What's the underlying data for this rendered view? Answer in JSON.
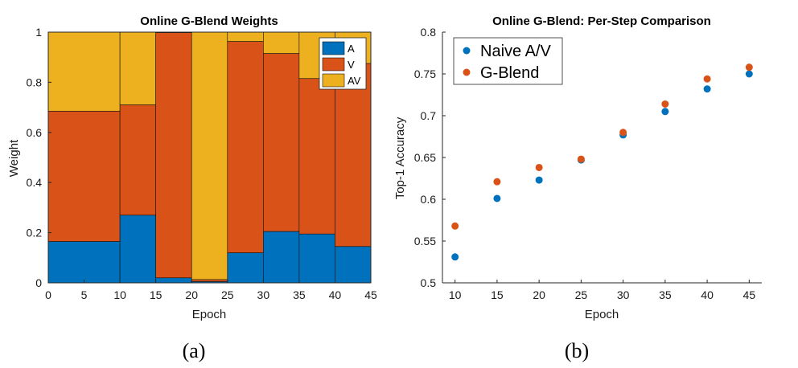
{
  "colors": {
    "A": "#0072BD",
    "V": "#D95319",
    "AV": "#EDB120"
  },
  "chart_data": [
    {
      "type": "area",
      "title": "Online G-Blend Weights",
      "xlabel": "Epoch",
      "ylabel": "Weight",
      "xlim": [
        0,
        45
      ],
      "ylim": [
        0,
        1
      ],
      "xticks": [
        "0",
        "5",
        "10",
        "15",
        "20",
        "25",
        "30",
        "35",
        "40",
        "45"
      ],
      "yticks": [
        "0",
        "0.2",
        "0.4",
        "0.6",
        "0.8",
        "1"
      ],
      "stacked": true,
      "step": true,
      "legend_position": "top-right",
      "segments": [
        {
          "start": 0,
          "end": 10,
          "A": 0.165,
          "V": 0.52,
          "AV": 0.315
        },
        {
          "start": 10,
          "end": 15,
          "A": 0.27,
          "V": 0.44,
          "AV": 0.29
        },
        {
          "start": 15,
          "end": 20,
          "A": 0.02,
          "V": 0.978,
          "AV": 0.002
        },
        {
          "start": 20,
          "end": 25,
          "A": 0.005,
          "V": 0.008,
          "AV": 0.987
        },
        {
          "start": 25,
          "end": 30,
          "A": 0.12,
          "V": 0.843,
          "AV": 0.037
        },
        {
          "start": 30,
          "end": 35,
          "A": 0.205,
          "V": 0.71,
          "AV": 0.085
        },
        {
          "start": 35,
          "end": 40,
          "A": 0.195,
          "V": 0.62,
          "AV": 0.185
        },
        {
          "start": 40,
          "end": 45,
          "A": 0.145,
          "V": 0.73,
          "AV": 0.125
        }
      ],
      "series_names": [
        "A",
        "V",
        "AV"
      ],
      "caption": "(a)"
    },
    {
      "type": "scatter",
      "title": "Online G-Blend: Per-Step Comparison",
      "xlabel": "Epoch",
      "ylabel": "Top-1 Accuracy",
      "xlim": [
        8.5,
        46.5
      ],
      "ylim": [
        0.5,
        0.8
      ],
      "xticks": [
        "10",
        "15",
        "20",
        "25",
        "30",
        "35",
        "40",
        "45"
      ],
      "yticks": [
        "0.5",
        "0.55",
        "0.6",
        "0.65",
        "0.7",
        "0.75",
        "0.8"
      ],
      "legend_position": "top-left",
      "x": [
        10,
        15,
        20,
        25,
        30,
        35,
        40,
        45
      ],
      "series": [
        {
          "name": "Naive A/V",
          "values": [
            0.531,
            0.601,
            0.623,
            0.647,
            0.677,
            0.705,
            0.732,
            0.75
          ]
        },
        {
          "name": "G-Blend",
          "values": [
            0.568,
            0.621,
            0.638,
            0.648,
            0.68,
            0.714,
            0.744,
            0.758
          ]
        }
      ],
      "caption": "(b)"
    }
  ]
}
